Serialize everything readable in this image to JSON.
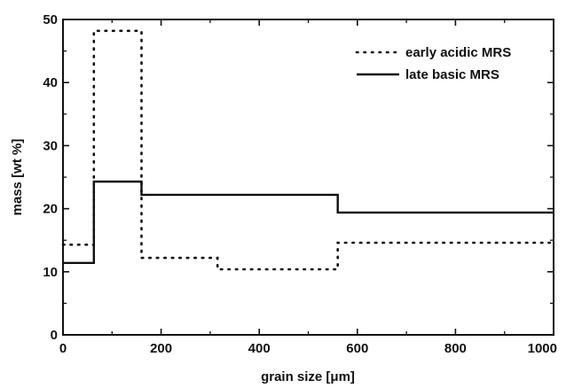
{
  "chart_data": {
    "type": "line",
    "step": true,
    "xlabel": "grain size [μm]",
    "ylabel": "mass [wt %]",
    "xlim": [
      0,
      1000
    ],
    "ylim": [
      0,
      50
    ],
    "x_ticks": [
      0,
      200,
      400,
      600,
      800,
      1000
    ],
    "y_ticks": [
      0,
      10,
      20,
      30,
      40,
      50
    ],
    "x_minor_step": 100,
    "y_minor_step": 5,
    "grid": false,
    "legend_position": "top-right",
    "series": [
      {
        "name": "early acidic MRS",
        "style": "dotted",
        "color": "#111111",
        "x": [
          0,
          63,
          63,
          160,
          160,
          315,
          315,
          560,
          560,
          1000
        ],
        "y": [
          14.3,
          14.3,
          48.2,
          48.2,
          12.2,
          12.2,
          10.4,
          10.4,
          14.6,
          14.6
        ]
      },
      {
        "name": "late basic MRS",
        "style": "solid",
        "color": "#111111",
        "x": [
          0,
          63,
          63,
          160,
          160,
          560,
          560,
          1000
        ],
        "y": [
          11.4,
          11.4,
          24.3,
          24.3,
          22.2,
          22.2,
          19.4,
          19.4
        ]
      }
    ]
  }
}
